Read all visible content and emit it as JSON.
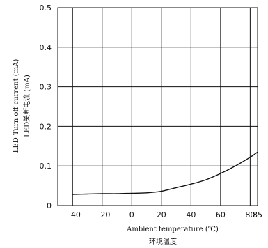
{
  "chart_data": {
    "type": "line",
    "xlabel": "Ambient temperature (℃)",
    "xlabel_cn": "环境温度",
    "ylabel": "LED Turn off current (mA)",
    "ylabel_cn": "LED关断电流 (mA)",
    "xlim": [
      -50,
      85
    ],
    "ylim": [
      0,
      0.5
    ],
    "x_ticks": [
      -40,
      -20,
      0,
      20,
      40,
      60,
      80,
      85
    ],
    "x_tick_labels": [
      "−40",
      "−20",
      "0",
      "20",
      "40",
      "60",
      "80",
      "85"
    ],
    "y_ticks": [
      0,
      0.1,
      0.2,
      0.3,
      0.4,
      0.5
    ],
    "y_tick_labels": [
      "0",
      "0.1",
      "0.2",
      "0.3",
      "0.4",
      "0.5"
    ],
    "grid": true,
    "series": [
      {
        "x": [
          -40,
          -30,
          -20,
          -10,
          0,
          10,
          20,
          30,
          40,
          50,
          60,
          70,
          80,
          85
        ],
        "y": [
          0.028,
          0.029,
          0.03,
          0.03,
          0.031,
          0.032,
          0.036,
          0.045,
          0.054,
          0.065,
          0.081,
          0.1,
          0.122,
          0.135
        ]
      }
    ],
    "colors": {
      "line": "#111111",
      "grid": "#111111",
      "background": "#ffffff"
    }
  }
}
